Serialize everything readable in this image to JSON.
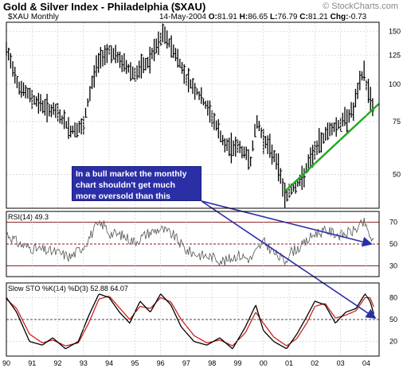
{
  "header": {
    "title": "Gold & Silver Index - Philadelphia ($XAU)",
    "watermark": "© StockCharts.com",
    "symbol_label": "$XAU Monthly",
    "date": "14-May-2004",
    "ohlc": {
      "o_label": "O:",
      "o": "81.91",
      "h_label": "H:",
      "h": "86.65",
      "l_label": "L:",
      "l": "76.79",
      "c_label": "C:",
      "c": "81.21",
      "chg_label": "Chg:",
      "chg": "-0.73"
    }
  },
  "annotation": {
    "text": "In a bull market the monthly chart shouldn't get much more oversold than this"
  },
  "colors": {
    "price_bars": "#000000",
    "trendline": "#22aa22",
    "rsi_line": "#555555",
    "rsi_band": "#8a1a1a",
    "sto_k": "#000000",
    "sto_d": "#cc2222",
    "arrow": "#2b2fa6",
    "annotation_bg": "#2b2fa6",
    "grid": "#c8c8c8"
  },
  "chart_data": [
    {
      "type": "ohlc",
      "panel": "price",
      "y_scale": "log",
      "ylim": [
        40,
        155
      ],
      "yticks": [
        "150",
        "125",
        "100",
        "75",
        "50"
      ],
      "x_range": [
        1990,
        2004.5
      ],
      "xticks": [
        "90",
        "91",
        "92",
        "93",
        "94",
        "95",
        "96",
        "97",
        "98",
        "99",
        "00",
        "01",
        "02",
        "03",
        "04"
      ],
      "series": [
        {
          "x": [
            1990,
            1990.5,
            1991,
            1991.5,
            1992,
            1992.5,
            1993,
            1993.5,
            1993.75,
            1994,
            1994.5,
            1995,
            1995.5,
            1996,
            1996.08,
            1996.5,
            1997,
            1997.5,
            1998,
            1998.5,
            1999,
            1999.5,
            1999.75,
            2000,
            2000.5,
            2000.85,
            2001,
            2001.5,
            2002,
            2002.5,
            2003,
            2003.5,
            2003.9,
            2004,
            2004.33
          ],
          "y": [
            130,
            98,
            90,
            84,
            80,
            70,
            72,
            115,
            125,
            130,
            118,
            108,
            118,
            140,
            148,
            130,
            105,
            92,
            78,
            62,
            62,
            56,
            75,
            66,
            56,
            42,
            44,
            48,
            60,
            70,
            74,
            82,
            112,
            100,
            81
          ]
        }
      ],
      "trendline": {
        "x": [
          2000.85,
          2004.5
        ],
        "y": [
          44,
          80
        ]
      }
    },
    {
      "type": "line",
      "panel": "rsi",
      "label": "RSI(14)",
      "last": "49.3",
      "ylim": [
        20,
        80
      ],
      "yticks": [
        "70",
        "50",
        "30"
      ],
      "series": [
        {
          "x": [
            1990,
            1990.5,
            1991,
            1991.5,
            1992,
            1992.5,
            1993,
            1993.5,
            1993.8,
            1994,
            1994.5,
            1995,
            1995.5,
            1996,
            1996.5,
            1997,
            1997.5,
            1998,
            1998.5,
            1999,
            1999.5,
            2000,
            2000.5,
            2000.85,
            2001,
            2001.5,
            2002,
            2002.5,
            2003,
            2003.5,
            2003.95,
            2004,
            2004.33
          ],
          "y": [
            60,
            50,
            46,
            44,
            42,
            38,
            48,
            66,
            68,
            60,
            58,
            52,
            60,
            64,
            58,
            44,
            40,
            38,
            34,
            40,
            36,
            52,
            40,
            34,
            42,
            48,
            60,
            62,
            58,
            62,
            70,
            64,
            49
          ]
        }
      ]
    },
    {
      "type": "line",
      "panel": "stochastic",
      "label": "Slow STO %K(14) %D(3)",
      "k_last": "52.88",
      "d_last": "64.07",
      "ylim": [
        0,
        100
      ],
      "yticks": [
        "80",
        "50",
        "20"
      ],
      "series": [
        {
          "x": [
            1990,
            1990.4,
            1990.9,
            1991.4,
            1991.8,
            1992.3,
            1992.8,
            1993.2,
            1993.6,
            1994,
            1994.4,
            1994.8,
            1995.2,
            1995.6,
            1996,
            1996.4,
            1996.8,
            1997.3,
            1997.8,
            1998.3,
            1998.8,
            1999.3,
            1999.7,
            2000,
            2000.4,
            2000.9,
            2001.3,
            2001.7,
            2002,
            2002.4,
            2002.8,
            2003.2,
            2003.6,
            2003.95,
            2004.15,
            2004.33
          ],
          "y": [
            80,
            60,
            20,
            15,
            25,
            10,
            20,
            55,
            85,
            80,
            60,
            45,
            75,
            60,
            85,
            70,
            40,
            20,
            15,
            25,
            10,
            40,
            70,
            35,
            20,
            10,
            30,
            55,
            75,
            70,
            45,
            60,
            65,
            85,
            75,
            53
          ]
        },
        {
          "x": [
            1990,
            1990.4,
            1990.9,
            1991.4,
            1991.8,
            1992.3,
            1992.8,
            1993.2,
            1993.6,
            1994,
            1994.4,
            1994.8,
            1995.2,
            1995.6,
            1996,
            1996.4,
            1996.8,
            1997.3,
            1997.8,
            1998.3,
            1998.8,
            1999.3,
            1999.7,
            2000,
            2000.4,
            2000.9,
            2001.3,
            2001.7,
            2002,
            2002.4,
            2002.8,
            2003.2,
            2003.6,
            2003.95,
            2004.15,
            2004.33
          ],
          "y": [
            78,
            65,
            30,
            18,
            22,
            14,
            18,
            45,
            78,
            82,
            66,
            50,
            68,
            65,
            80,
            74,
            50,
            28,
            18,
            22,
            14,
            32,
            60,
            45,
            26,
            14,
            24,
            46,
            68,
            72,
            52,
            56,
            62,
            80,
            80,
            64
          ]
        }
      ]
    }
  ]
}
